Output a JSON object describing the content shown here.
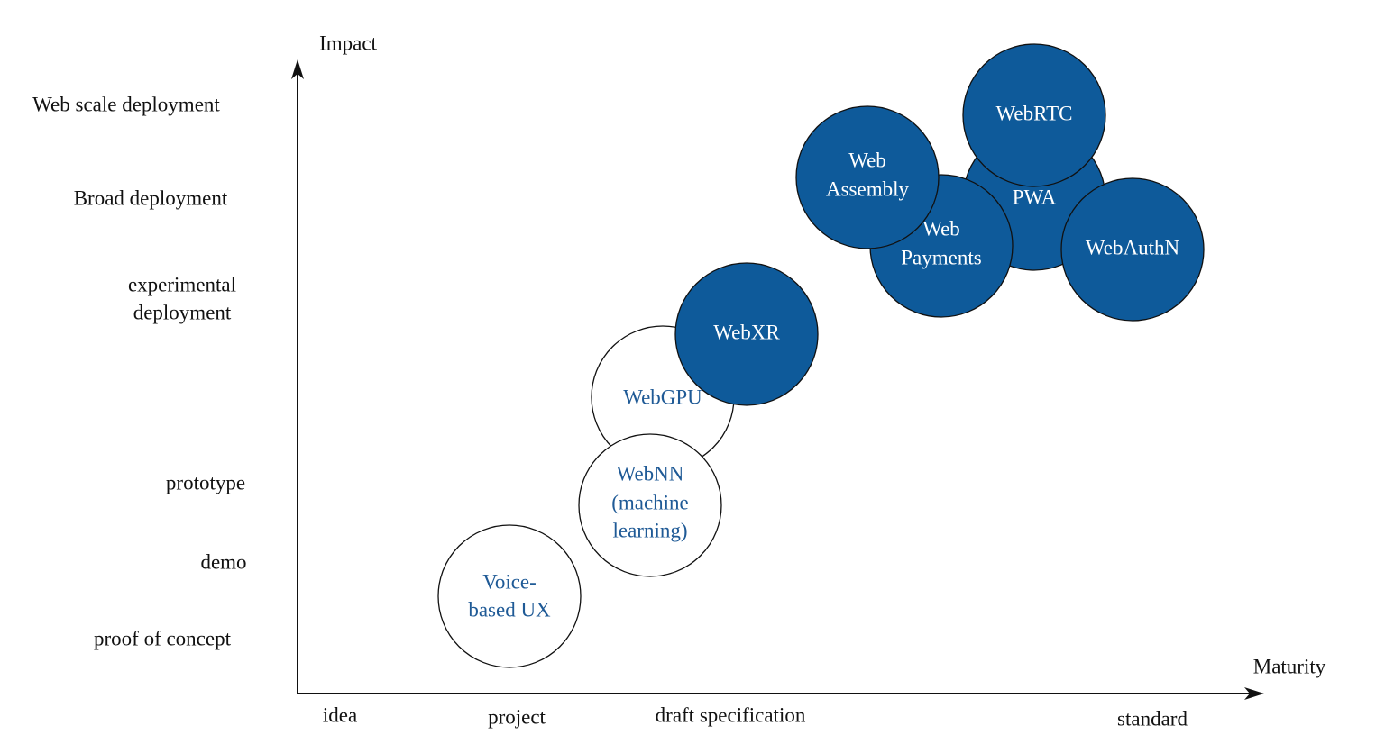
{
  "axes": {
    "y_label": "Impact",
    "x_label": "Maturity",
    "y_levels": [
      {
        "lines": [
          "Web scale deployment"
        ]
      },
      {
        "lines": [
          "Broad deployment"
        ]
      },
      {
        "lines": [
          "experimental",
          "deployment"
        ]
      },
      {
        "lines": [
          "prototype"
        ]
      },
      {
        "lines": [
          "demo"
        ]
      },
      {
        "lines": [
          "proof of concept"
        ]
      }
    ],
    "x_levels": [
      "idea",
      "project",
      "draft specification",
      "standard"
    ]
  },
  "nodes": [
    {
      "lines": [
        "Voice-",
        "based UX"
      ]
    },
    {
      "lines": [
        "WebGPU"
      ]
    },
    {
      "lines": [
        "WebNN",
        "(machine",
        "learning)"
      ]
    },
    {
      "lines": [
        "WebXR"
      ]
    },
    {
      "lines": [
        "PWA"
      ]
    },
    {
      "lines": [
        "Web",
        "Payments"
      ]
    },
    {
      "lines": [
        "Web",
        "Assembly"
      ]
    },
    {
      "lines": [
        "WebRTC"
      ]
    },
    {
      "lines": [
        "WebAuthN"
      ]
    }
  ]
}
